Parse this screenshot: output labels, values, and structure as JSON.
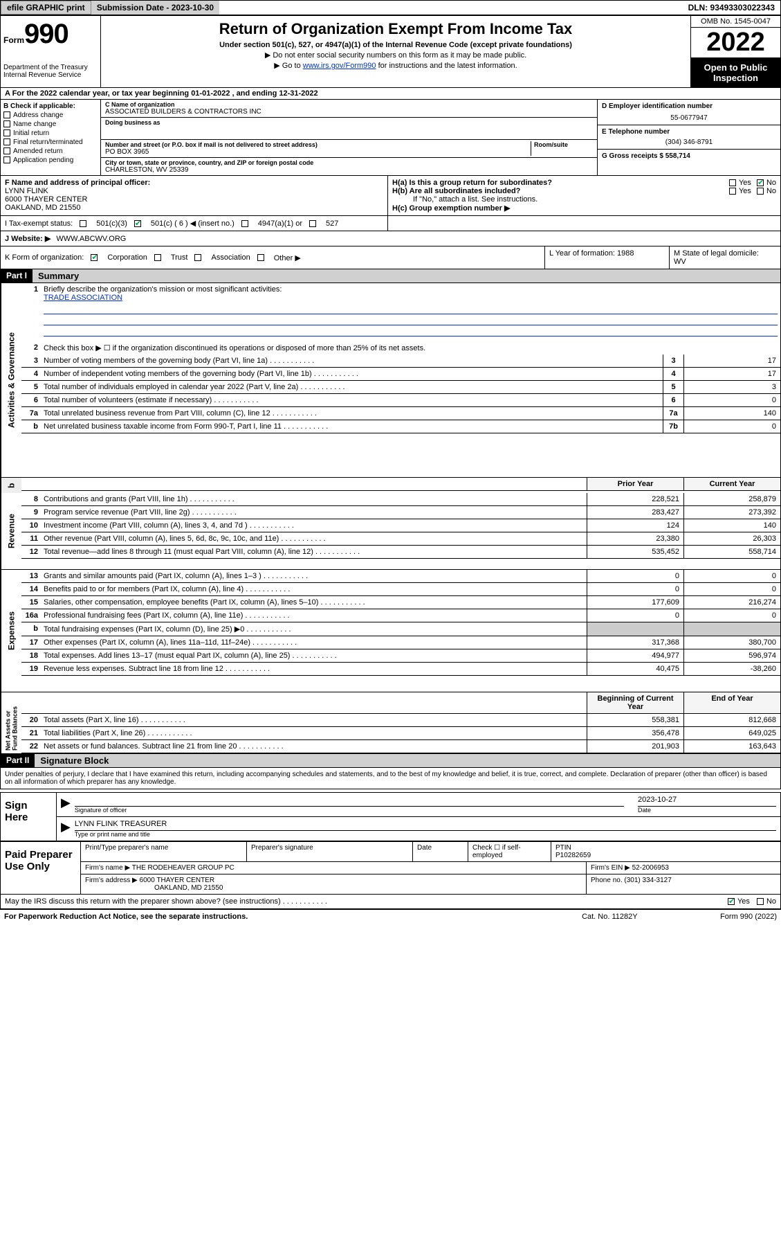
{
  "topbar": {
    "efile_btn": "efile GRAPHIC print",
    "sub_label": "Submission Date - 2023-10-30",
    "dln_label": "DLN: 93493303022343"
  },
  "header": {
    "form_word": "Form",
    "form_num": "990",
    "dept": "Department of the Treasury",
    "irs": "Internal Revenue Service",
    "title": "Return of Organization Exempt From Income Tax",
    "sub1": "Under section 501(c), 527, or 4947(a)(1) of the Internal Revenue Code (except private foundations)",
    "sub2": "▶ Do not enter social security numbers on this form as it may be made public.",
    "sub3_pre": "▶ Go to ",
    "sub3_link": "www.irs.gov/Form990",
    "sub3_post": " for instructions and the latest information.",
    "omb": "OMB No. 1545-0047",
    "year": "2022",
    "open1": "Open to Public",
    "open2": "Inspection"
  },
  "row_a": "A For the 2022 calendar year, or tax year beginning 01-01-2022    , and ending 12-31-2022",
  "col_b": {
    "hdr": "B Check if applicable:",
    "items": [
      "Address change",
      "Name change",
      "Initial return",
      "Final return/terminated",
      "Amended return",
      "Application pending"
    ]
  },
  "col_c": {
    "name_lbl": "C Name of organization",
    "name": "ASSOCIATED BUILDERS & CONTRACTORS INC",
    "dba_lbl": "Doing business as",
    "street_lbl": "Number and street (or P.O. box if mail is not delivered to street address)",
    "room_lbl": "Room/suite",
    "street": "PO BOX 3965",
    "city_lbl": "City or town, state or province, country, and ZIP or foreign postal code",
    "city": "CHARLESTON, WV  25339"
  },
  "col_d": {
    "ein_lbl": "D Employer identification number",
    "ein": "55-0677947",
    "tel_lbl": "E Telephone number",
    "tel": "(304) 346-8791",
    "gross_lbl": "G Gross receipts $ 558,714"
  },
  "row_f": {
    "lbl": "F  Name and address of principal officer:",
    "name": "LYNN FLINK",
    "addr1": "6000 THAYER CENTER",
    "addr2": "OAKLAND, MD  21550"
  },
  "row_h": {
    "ha": "H(a)  Is this a group return for subordinates?",
    "hb": "H(b)  Are all subordinates included?",
    "hb_note": "If \"No,\" attach a list. See instructions.",
    "hc": "H(c)  Group exemption number ▶",
    "yes": "Yes",
    "no": "No"
  },
  "row_i": {
    "lbl": "I    Tax-exempt status:",
    "c1": "501(c)(3)",
    "c2": "501(c) ( 6 ) ◀ (insert no.)",
    "c3": "4947(a)(1) or",
    "c4": "527"
  },
  "row_j": {
    "lbl": "J    Website: ▶",
    "val": "WWW.ABCWV.ORG"
  },
  "row_k": {
    "lbl": "K Form of organization:",
    "corp": "Corporation",
    "trust": "Trust",
    "assoc": "Association",
    "other": "Other ▶",
    "year_lbl": "L Year of formation: 1988",
    "state_lbl": "M State of legal domicile:",
    "state": "WV"
  },
  "part1": {
    "hdr": "Part I",
    "title": "Summary",
    "line1_lbl": "Briefly describe the organization's mission or most significant activities:",
    "line1_val": "TRADE ASSOCIATION",
    "line2": "Check this box ▶ ☐  if the organization discontinued its operations or disposed of more than 25% of its net assets.",
    "prior": "Prior Year",
    "current": "Current Year",
    "begin": "Beginning of Current Year",
    "end": "End of Year",
    "rows_gov": [
      {
        "n": "3",
        "t": "Number of voting members of the governing body (Part VI, line 1a)",
        "box": "3",
        "v": "17"
      },
      {
        "n": "4",
        "t": "Number of independent voting members of the governing body (Part VI, line 1b)",
        "box": "4",
        "v": "17"
      },
      {
        "n": "5",
        "t": "Total number of individuals employed in calendar year 2022 (Part V, line 2a)",
        "box": "5",
        "v": "3"
      },
      {
        "n": "6",
        "t": "Total number of volunteers (estimate if necessary)",
        "box": "6",
        "v": "0"
      },
      {
        "n": "7a",
        "t": "Total unrelated business revenue from Part VIII, column (C), line 12",
        "box": "7a",
        "v": "140"
      },
      {
        "n": "b",
        "t": "Net unrelated business taxable income from Form 990-T, Part I, line 11",
        "box": "7b",
        "v": "0"
      }
    ],
    "rows_rev": [
      {
        "n": "8",
        "t": "Contributions and grants (Part VIII, line 1h)",
        "p": "228,521",
        "c": "258,879"
      },
      {
        "n": "9",
        "t": "Program service revenue (Part VIII, line 2g)",
        "p": "283,427",
        "c": "273,392"
      },
      {
        "n": "10",
        "t": "Investment income (Part VIII, column (A), lines 3, 4, and 7d )",
        "p": "124",
        "c": "140"
      },
      {
        "n": "11",
        "t": "Other revenue (Part VIII, column (A), lines 5, 6d, 8c, 9c, 10c, and 11e)",
        "p": "23,380",
        "c": "26,303"
      },
      {
        "n": "12",
        "t": "Total revenue—add lines 8 through 11 (must equal Part VIII, column (A), line 12)",
        "p": "535,452",
        "c": "558,714"
      }
    ],
    "rows_exp": [
      {
        "n": "13",
        "t": "Grants and similar amounts paid (Part IX, column (A), lines 1–3 )",
        "p": "0",
        "c": "0"
      },
      {
        "n": "14",
        "t": "Benefits paid to or for members (Part IX, column (A), line 4)",
        "p": "0",
        "c": "0"
      },
      {
        "n": "15",
        "t": "Salaries, other compensation, employee benefits (Part IX, column (A), lines 5–10)",
        "p": "177,609",
        "c": "216,274"
      },
      {
        "n": "16a",
        "t": "Professional fundraising fees (Part IX, column (A), line 11e)",
        "p": "0",
        "c": "0"
      },
      {
        "n": "b",
        "t": "Total fundraising expenses (Part IX, column (D), line 25) ▶0",
        "p": "",
        "c": ""
      },
      {
        "n": "17",
        "t": "Other expenses (Part IX, column (A), lines 11a–11d, 11f–24e)",
        "p": "317,368",
        "c": "380,700"
      },
      {
        "n": "18",
        "t": "Total expenses. Add lines 13–17 (must equal Part IX, column (A), line 25)",
        "p": "494,977",
        "c": "596,974"
      },
      {
        "n": "19",
        "t": "Revenue less expenses. Subtract line 18 from line 12",
        "p": "40,475",
        "c": "-38,260"
      }
    ],
    "rows_net": [
      {
        "n": "20",
        "t": "Total assets (Part X, line 16)",
        "p": "558,381",
        "c": "812,668"
      },
      {
        "n": "21",
        "t": "Total liabilities (Part X, line 26)",
        "p": "356,478",
        "c": "649,025"
      },
      {
        "n": "22",
        "t": "Net assets or fund balances. Subtract line 21 from line 20",
        "p": "201,903",
        "c": "163,643"
      }
    ],
    "side_gov": "Activities & Governance",
    "side_rev": "Revenue",
    "side_exp": "Expenses",
    "side_net": "Net Assets or Fund Balances"
  },
  "part2": {
    "hdr": "Part II",
    "title": "Signature Block",
    "decl": "Under penalties of perjury, I declare that I have examined this return, including accompanying schedules and statements, and to the best of my knowledge and belief, it is true, correct, and complete. Declaration of preparer (other than officer) is based on all information of which preparer has any knowledge."
  },
  "sign": {
    "here": "Sign Here",
    "sig_lbl": "Signature of officer",
    "date_lbl": "Date",
    "date": "2023-10-27",
    "name": "LYNN FLINK  TREASURER",
    "name_lbl": "Type or print name and title"
  },
  "paid": {
    "title": "Paid Preparer Use Only",
    "c1": "Print/Type preparer's name",
    "c2": "Preparer's signature",
    "c3": "Date",
    "c4_lbl": "Check ☐ if self-employed",
    "c5_lbl": "PTIN",
    "c5": "P10282659",
    "firm_name_lbl": "Firm's name    ▶",
    "firm_name": "THE RODEHEAVER GROUP PC",
    "firm_ein_lbl": "Firm's EIN ▶",
    "firm_ein": "52-2006953",
    "firm_addr_lbl": "Firm's address ▶",
    "firm_addr1": "6000 THAYER CENTER",
    "firm_addr2": "OAKLAND, MD  21550",
    "phone_lbl": "Phone no.",
    "phone": "(301) 334-3127"
  },
  "discuss": "May the IRS discuss this return with the preparer shown above? (see instructions)",
  "footer": {
    "left": "For Paperwork Reduction Act Notice, see the separate instructions.",
    "mid": "Cat. No. 11282Y",
    "right": "Form 990 (2022)"
  }
}
